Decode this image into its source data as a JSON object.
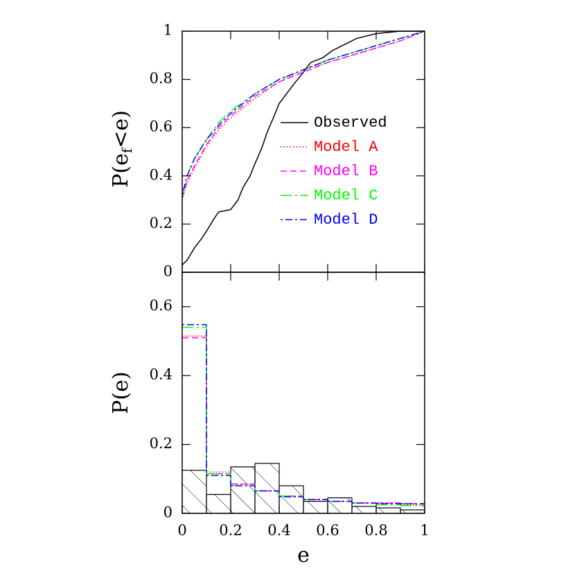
{
  "chart_data": [
    {
      "type": "line",
      "ylabel": [
        "P(e",
        "f",
        "<e)"
      ],
      "xlim": [
        0,
        1
      ],
      "ylim": [
        0,
        1
      ],
      "xticks": [
        0,
        0.2,
        0.4,
        0.6,
        0.8,
        1
      ],
      "yticks": [
        0,
        0.2,
        0.4,
        0.6,
        0.8,
        1
      ],
      "series": [
        {
          "name": "Observed",
          "color": "#000000",
          "dash": "none",
          "x": [
            0,
            0.02,
            0.05,
            0.08,
            0.1,
            0.13,
            0.15,
            0.2,
            0.23,
            0.25,
            0.28,
            0.3,
            0.33,
            0.35,
            0.38,
            0.4,
            0.43,
            0.46,
            0.5,
            0.53,
            0.58,
            0.62,
            0.68,
            0.72,
            0.8,
            0.9,
            1
          ],
          "values": [
            0.03,
            0.05,
            0.1,
            0.14,
            0.17,
            0.22,
            0.25,
            0.26,
            0.3,
            0.35,
            0.4,
            0.45,
            0.52,
            0.58,
            0.65,
            0.7,
            0.74,
            0.78,
            0.83,
            0.87,
            0.89,
            0.92,
            0.95,
            0.97,
            0.99,
            1,
            1
          ]
        },
        {
          "name": "Model A",
          "color": "#ff0000",
          "dash": "1.5,3",
          "x": [
            0,
            0.02,
            0.05,
            0.1,
            0.15,
            0.2,
            0.3,
            0.4,
            0.5,
            0.6,
            0.7,
            0.8,
            0.9,
            1
          ],
          "values": [
            0.3,
            0.37,
            0.43,
            0.52,
            0.59,
            0.64,
            0.72,
            0.79,
            0.84,
            0.87,
            0.9,
            0.93,
            0.96,
            1
          ]
        },
        {
          "name": "Model B",
          "color": "#ff00ff",
          "dash": "9,5",
          "x": [
            0,
            0.02,
            0.05,
            0.1,
            0.15,
            0.2,
            0.3,
            0.4,
            0.5,
            0.6,
            0.7,
            0.8,
            0.9,
            1
          ],
          "values": [
            0.31,
            0.38,
            0.44,
            0.53,
            0.6,
            0.65,
            0.73,
            0.79,
            0.83,
            0.87,
            0.9,
            0.93,
            0.96,
            1
          ]
        },
        {
          "name": "Model C",
          "color": "#00ff00",
          "dash": "16,5,3,5",
          "x": [
            0,
            0.02,
            0.05,
            0.1,
            0.15,
            0.2,
            0.3,
            0.4,
            0.5,
            0.6,
            0.7,
            0.8,
            0.9,
            1
          ],
          "values": [
            0.32,
            0.4,
            0.47,
            0.55,
            0.62,
            0.67,
            0.74,
            0.8,
            0.84,
            0.88,
            0.91,
            0.94,
            0.97,
            1
          ]
        },
        {
          "name": "Model D",
          "color": "#0000ff",
          "dash": "3,4,10,4",
          "x": [
            0,
            0.02,
            0.05,
            0.1,
            0.15,
            0.2,
            0.3,
            0.4,
            0.5,
            0.6,
            0.7,
            0.8,
            0.9,
            1
          ],
          "values": [
            0.32,
            0.4,
            0.47,
            0.55,
            0.61,
            0.66,
            0.74,
            0.8,
            0.84,
            0.88,
            0.91,
            0.94,
            0.97,
            1
          ]
        }
      ]
    },
    {
      "type": "histogram",
      "xlabel": "e",
      "ylabel": "P(e)",
      "xlim": [
        0,
        1
      ],
      "ylim": [
        0,
        0.7
      ],
      "xticks": [
        0,
        0.2,
        0.4,
        0.6,
        0.8,
        1
      ],
      "yticks": [
        0,
        0.2,
        0.4,
        0.6
      ],
      "bins": [
        0,
        0.1,
        0.2,
        0.3,
        0.4,
        0.5,
        0.6,
        0.7,
        0.8,
        0.9,
        1
      ],
      "series": [
        {
          "name": "Observed",
          "color": "#000000",
          "dash": "none",
          "hatch": true,
          "values": [
            0.125,
            0.055,
            0.135,
            0.145,
            0.08,
            0.035,
            0.045,
            0.02,
            0.016,
            0.01
          ]
        },
        {
          "name": "Model A",
          "color": "#ff0000",
          "dash": "1.5,3",
          "values": [
            0.515,
            0.12,
            0.085,
            0.065,
            0.05,
            0.04,
            0.035,
            0.03,
            0.03,
            0.025
          ]
        },
        {
          "name": "Model B",
          "color": "#ff00ff",
          "dash": "9,5",
          "values": [
            0.51,
            0.115,
            0.085,
            0.065,
            0.05,
            0.04,
            0.035,
            0.03,
            0.03,
            0.028
          ]
        },
        {
          "name": "Model C",
          "color": "#00ff00",
          "dash": "16,5,3,5",
          "values": [
            0.54,
            0.115,
            0.08,
            0.065,
            0.05,
            0.04,
            0.035,
            0.03,
            0.025,
            0.022
          ]
        },
        {
          "name": "Model D",
          "color": "#0000ff",
          "dash": "3,4,10,4",
          "values": [
            0.548,
            0.11,
            0.08,
            0.065,
            0.048,
            0.04,
            0.035,
            0.03,
            0.028,
            0.028
          ]
        }
      ]
    }
  ]
}
